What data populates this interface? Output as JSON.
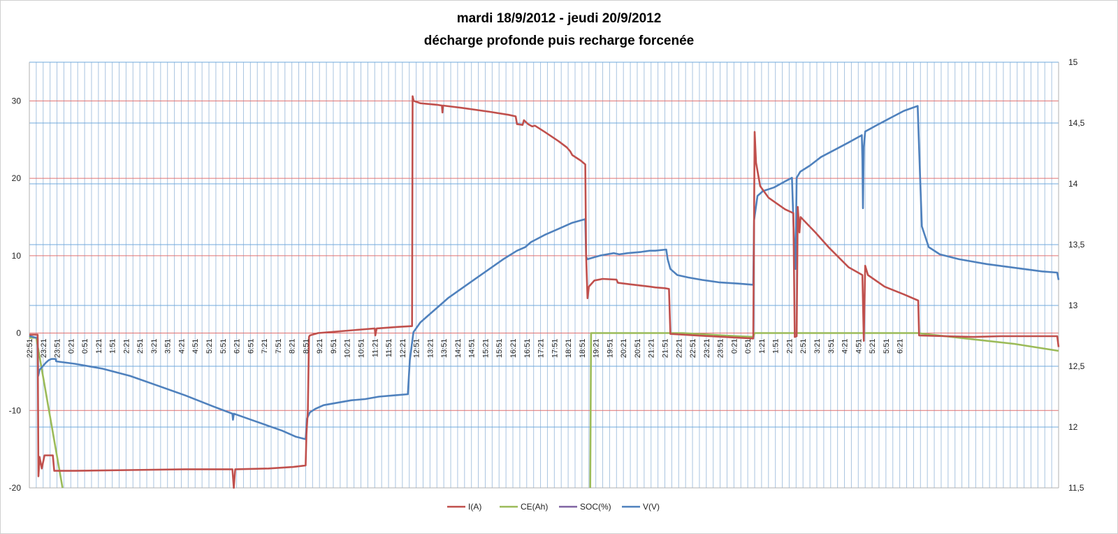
{
  "chart_data": {
    "type": "line",
    "title_line1": "mardi 18/9/2012 - jeudi 20/9/2012",
    "title_line2": "décharge profonde puis recharge forcenée",
    "x_categories": [
      "22:51",
      "23:21",
      "23:51",
      "0:21",
      "0:51",
      "1:21",
      "1:51",
      "2:21",
      "2:51",
      "3:21",
      "3:51",
      "4:21",
      "4:51",
      "5:21",
      "5:51",
      "6:21",
      "6:51",
      "7:21",
      "7:51",
      "8:21",
      "8:51",
      "9:21",
      "9:51",
      "10:21",
      "10:51",
      "11:21",
      "11:51",
      "12:21",
      "12:51",
      "13:21",
      "13:51",
      "14:21",
      "14:51",
      "15:21",
      "15:51",
      "16:21",
      "16:51",
      "17:21",
      "17:51",
      "18:21",
      "18:51",
      "19:21",
      "19:51",
      "20:21",
      "20:51",
      "21:21",
      "21:51",
      "22:21",
      "22:51",
      "23:21",
      "23:51",
      "0:21",
      "0:51",
      "1:21",
      "1:51",
      "2:21",
      "2:51",
      "3:21",
      "3:51",
      "4:21",
      "4:51",
      "5:21",
      "5:51",
      "6:21"
    ],
    "y_left": {
      "min": -20,
      "max": 35,
      "ticks": [
        -20,
        -10,
        0,
        10,
        20,
        30
      ],
      "labels": [
        "-20",
        "-10",
        "0",
        "10",
        "20",
        "30"
      ]
    },
    "y_right": {
      "min": 11.5,
      "max": 15,
      "ticks": [
        11.5,
        12,
        12.5,
        13,
        13.5,
        14,
        14.5,
        15
      ],
      "labels": [
        "11,5",
        "12",
        "12,5",
        "13",
        "13,5",
        "14",
        "14,5",
        "15"
      ]
    },
    "grid": {
      "minor_vertical": true,
      "left_horizontal": true,
      "right_horizontal": true
    },
    "legend_position": "bottom",
    "colors": {
      "I": "#c0504d",
      "CE": "#9bbb59",
      "SOC": "#8064a2",
      "V": "#4f81bd",
      "grid_left": "#e07070",
      "grid_right": "#6fa8dc",
      "grid_minor": "#a9c4e0",
      "frame": "#b0b0b0"
    },
    "series": [
      {
        "name": "I(A)",
        "axis": "left",
        "points": [
          [
            22.85,
            -0.2
          ],
          [
            23.15,
            -0.2
          ],
          [
            23.18,
            -18.5
          ],
          [
            23.22,
            -16
          ],
          [
            23.3,
            -17.5
          ],
          [
            23.4,
            -15.8
          ],
          [
            23.7,
            -15.8
          ],
          [
            23.75,
            -17.8
          ],
          [
            24.5,
            -17.8
          ],
          [
            26.5,
            -17.7
          ],
          [
            28.5,
            -17.6
          ],
          [
            30.2,
            -17.6
          ],
          [
            30.25,
            -20
          ],
          [
            30.3,
            -17.6
          ],
          [
            31.5,
            -17.5
          ],
          [
            32.4,
            -17.3
          ],
          [
            32.85,
            -17.1
          ],
          [
            32.88,
            -13
          ],
          [
            32.93,
            -10
          ],
          [
            32.97,
            -0.5
          ],
          [
            33.0,
            -0.3
          ],
          [
            33.3,
            0
          ],
          [
            34.0,
            0.2
          ],
          [
            35.0,
            0.5
          ],
          [
            35.35,
            0.6
          ],
          [
            35.37,
            -0.3
          ],
          [
            35.42,
            0.6
          ],
          [
            36.2,
            0.8
          ],
          [
            36.7,
            0.9
          ],
          [
            36.72,
            30.6
          ],
          [
            36.76,
            30
          ],
          [
            37.0,
            29.7
          ],
          [
            37.6,
            29.5
          ],
          [
            37.78,
            29.4
          ],
          [
            37.8,
            28.5
          ],
          [
            37.82,
            29.4
          ],
          [
            38.5,
            29.1
          ],
          [
            39.5,
            28.6
          ],
          [
            40.2,
            28.2
          ],
          [
            40.45,
            28.0
          ],
          [
            40.5,
            27.0
          ],
          [
            40.7,
            26.9
          ],
          [
            40.75,
            27.5
          ],
          [
            40.9,
            27.0
          ],
          [
            41.05,
            26.7
          ],
          [
            41.15,
            26.8
          ],
          [
            41.5,
            26.0
          ],
          [
            42.0,
            24.8
          ],
          [
            42.3,
            24.0
          ],
          [
            42.42,
            23.5
          ],
          [
            42.5,
            23.0
          ],
          [
            42.8,
            22.3
          ],
          [
            42.97,
            21.8
          ],
          [
            43.0,
            10
          ],
          [
            43.05,
            4.5
          ],
          [
            43.1,
            6.0
          ],
          [
            43.3,
            6.8
          ],
          [
            43.6,
            7.0
          ],
          [
            44.1,
            6.9
          ],
          [
            44.15,
            6.5
          ],
          [
            44.6,
            6.3
          ],
          [
            45.3,
            6.0
          ],
          [
            45.5,
            5.9
          ],
          [
            45.85,
            5.8
          ],
          [
            46.0,
            5.7
          ],
          [
            46.05,
            -0.1
          ],
          [
            47.0,
            -0.3
          ],
          [
            48.0,
            -0.5
          ],
          [
            49.05,
            -0.7
          ],
          [
            49.1,
            26
          ],
          [
            49.15,
            22
          ],
          [
            49.3,
            19
          ],
          [
            49.6,
            17.5
          ],
          [
            50.2,
            16
          ],
          [
            50.5,
            15.5
          ],
          [
            50.55,
            -0.5
          ],
          [
            50.62,
            -0.4
          ],
          [
            50.66,
            16.3
          ],
          [
            50.72,
            13
          ],
          [
            50.76,
            15
          ],
          [
            51.3,
            13
          ],
          [
            51.8,
            11
          ],
          [
            52.5,
            8.5
          ],
          [
            53.0,
            7.5
          ],
          [
            53.05,
            -1.0
          ],
          [
            53.1,
            8.7
          ],
          [
            53.2,
            7.5
          ],
          [
            53.8,
            6.0
          ],
          [
            54.5,
            5.0
          ],
          [
            55.02,
            4.2
          ],
          [
            55.05,
            -0.3
          ],
          [
            56.0,
            -0.4
          ],
          [
            57.0,
            -0.5
          ],
          [
            58.0,
            -0.4
          ],
          [
            60.05,
            -0.4
          ],
          [
            60.1,
            -1.8
          ]
        ]
      },
      {
        "name": "CE(Ah)",
        "axis": "left",
        "points": [
          [
            22.85,
            -0.6
          ],
          [
            23.1,
            -0.6
          ],
          [
            24.05,
            -20
          ],
          [
            null,
            null
          ],
          [
            43.15,
            -20
          ],
          [
            43.18,
            0
          ],
          [
            45.0,
            0
          ],
          [
            46.5,
            0
          ],
          [
            47.5,
            -0.2
          ],
          [
            48.5,
            -0.4
          ],
          [
            49.05,
            -0.5
          ],
          [
            49.1,
            0
          ],
          [
            51.0,
            0
          ],
          [
            53.0,
            0
          ],
          [
            55.0,
            0
          ],
          [
            55.5,
            -0.2
          ],
          [
            57.0,
            -0.8
          ],
          [
            58.5,
            -1.4
          ],
          [
            60.1,
            -2.3
          ]
        ]
      },
      {
        "name": "SOC(%)",
        "axis": "left",
        "points": []
      },
      {
        "name": "V(V)",
        "axis": "right",
        "points": [
          [
            22.85,
            12.75
          ],
          [
            23.15,
            12.73
          ],
          [
            23.17,
            12.42
          ],
          [
            23.22,
            12.47
          ],
          [
            23.45,
            12.53
          ],
          [
            23.55,
            12.55
          ],
          [
            23.65,
            12.56
          ],
          [
            23.8,
            12.56
          ],
          [
            23.82,
            12.54
          ],
          [
            24.5,
            12.52
          ],
          [
            25.5,
            12.48
          ],
          [
            26.5,
            12.42
          ],
          [
            27.5,
            12.34
          ],
          [
            28.5,
            12.26
          ],
          [
            29.5,
            12.17
          ],
          [
            30.2,
            12.11
          ],
          [
            30.22,
            12.06
          ],
          [
            30.25,
            12.11
          ],
          [
            30.5,
            12.09
          ],
          [
            31.0,
            12.05
          ],
          [
            31.5,
            12.01
          ],
          [
            32.0,
            11.97
          ],
          [
            32.3,
            11.94
          ],
          [
            32.5,
            11.92
          ],
          [
            32.85,
            11.9
          ],
          [
            32.9,
            12.07
          ],
          [
            33.0,
            12.12
          ],
          [
            33.2,
            12.15
          ],
          [
            33.5,
            12.18
          ],
          [
            34.0,
            12.2
          ],
          [
            34.5,
            12.22
          ],
          [
            35.0,
            12.23
          ],
          [
            35.5,
            12.25
          ],
          [
            36.0,
            12.26
          ],
          [
            36.55,
            12.27
          ],
          [
            36.62,
            12.55
          ],
          [
            36.75,
            12.78
          ],
          [
            37.0,
            12.86
          ],
          [
            37.3,
            12.92
          ],
          [
            37.6,
            12.98
          ],
          [
            38.0,
            13.06
          ],
          [
            38.5,
            13.14
          ],
          [
            39.0,
            13.22
          ],
          [
            39.5,
            13.3
          ],
          [
            40.0,
            13.38
          ],
          [
            40.5,
            13.45
          ],
          [
            40.8,
            13.48
          ],
          [
            41.0,
            13.52
          ],
          [
            41.5,
            13.58
          ],
          [
            42.0,
            13.63
          ],
          [
            42.5,
            13.68
          ],
          [
            42.97,
            13.71
          ],
          [
            43.0,
            13.4
          ],
          [
            43.05,
            13.38
          ],
          [
            43.2,
            13.39
          ],
          [
            43.5,
            13.41
          ],
          [
            44.0,
            13.43
          ],
          [
            44.2,
            13.42
          ],
          [
            44.5,
            13.43
          ],
          [
            45.0,
            13.44
          ],
          [
            45.3,
            13.45
          ],
          [
            45.5,
            13.45
          ],
          [
            45.9,
            13.46
          ],
          [
            45.95,
            13.38
          ],
          [
            46.05,
            13.3
          ],
          [
            46.3,
            13.25
          ],
          [
            46.7,
            13.23
          ],
          [
            47.2,
            13.21
          ],
          [
            47.8,
            13.19
          ],
          [
            48.5,
            13.18
          ],
          [
            49.05,
            13.17
          ],
          [
            49.08,
            13.7
          ],
          [
            49.2,
            13.9
          ],
          [
            49.4,
            13.94
          ],
          [
            49.8,
            13.97
          ],
          [
            50.2,
            14.02
          ],
          [
            50.45,
            14.05
          ],
          [
            50.5,
            13.7
          ],
          [
            50.55,
            13.4
          ],
          [
            50.58,
            13.3
          ],
          [
            50.62,
            14.05
          ],
          [
            50.75,
            14.1
          ],
          [
            51.1,
            14.15
          ],
          [
            51.5,
            14.22
          ],
          [
            52.0,
            14.28
          ],
          [
            52.5,
            14.34
          ],
          [
            52.98,
            14.4
          ],
          [
            53.0,
            14.2
          ],
          [
            53.02,
            13.8
          ],
          [
            53.05,
            14.3
          ],
          [
            53.1,
            14.43
          ],
          [
            53.5,
            14.48
          ],
          [
            54.0,
            14.54
          ],
          [
            54.5,
            14.6
          ],
          [
            55.0,
            14.64
          ],
          [
            55.05,
            14.3
          ],
          [
            55.15,
            13.65
          ],
          [
            55.4,
            13.48
          ],
          [
            55.8,
            13.42
          ],
          [
            56.5,
            13.38
          ],
          [
            57.5,
            13.34
          ],
          [
            58.5,
            13.31
          ],
          [
            59.5,
            13.28
          ],
          [
            60.05,
            13.27
          ],
          [
            60.1,
            13.21
          ]
        ]
      }
    ]
  }
}
